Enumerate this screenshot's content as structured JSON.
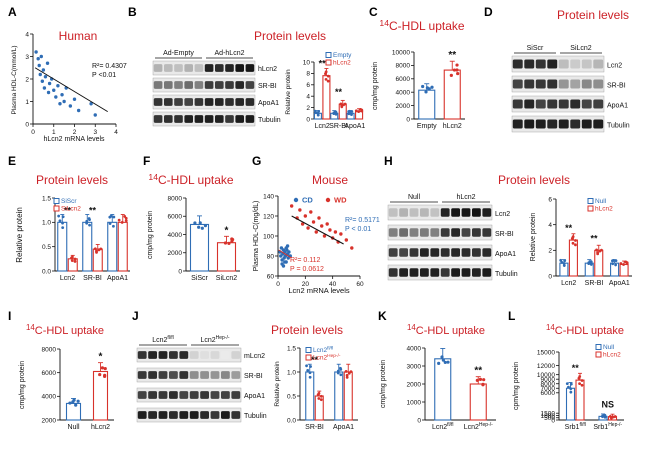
{
  "colors": {
    "blue": "#2f6db5",
    "red": "#d8322b",
    "black": "#111111",
    "panel_letter": "#000000",
    "header_red": "#cc2127"
  },
  "panels": [
    {
      "key": "A",
      "letter": "A",
      "header": "Human"
    },
    {
      "key": "B",
      "letter": "B",
      "header": "Protein levels"
    },
    {
      "key": "C",
      "letter": "C",
      "header_sup": "14",
      "header": "C-HDL uptake"
    },
    {
      "key": "D",
      "letter": "D",
      "header": "Protein levels"
    },
    {
      "key": "E",
      "letter": "E",
      "header": "Protein levels"
    },
    {
      "key": "F",
      "letter": "F",
      "header_sup": "14",
      "header": "C-HDL uptake"
    },
    {
      "key": "G",
      "letter": "G",
      "header": "Mouse"
    },
    {
      "key": "H",
      "letter": "H",
      "header": "Protein levels"
    },
    {
      "key": "I",
      "letter": "I",
      "header_sup": "14",
      "header": "C-HDL uptake"
    },
    {
      "key": "J",
      "letter": "J",
      "header": "Protein levels"
    },
    {
      "key": "K",
      "letter": "K",
      "header_sup": "14",
      "header": "C-HDL uptake"
    },
    {
      "key": "L",
      "letter": "L",
      "header_sup": "14",
      "header": "C-HDL uptake"
    }
  ],
  "blots": {
    "B": {
      "groups": [
        "Ad-Empty",
        "Ad-hLcn2"
      ],
      "rows": [
        "hLcn2",
        "SR-BI",
        "ApoA1",
        "Tubulin"
      ]
    },
    "D": {
      "groups": [
        "SiScr",
        "SiLcn2"
      ],
      "rows": [
        "Lcn2",
        "SR-BI",
        "ApoA1",
        "Tubulin"
      ]
    },
    "H": {
      "groups": [
        "Null",
        "hLcn2"
      ],
      "rows": [
        "Lcn2",
        "SR-BI",
        "ApoA1",
        "Tubulin"
      ]
    },
    "J": {
      "groups": [
        "Lcn2",
        "Lcn2"
      ],
      "group_sups": [
        "fl/fl",
        "Hep-/-"
      ],
      "rows": [
        "mLcn2",
        "SR-BI",
        "ApoA1",
        "Tubulin"
      ]
    }
  },
  "chart_data": [
    {
      "panel": "A",
      "type": "scatter",
      "xlabel": "hLcn2 mRNA levels",
      "ylabel": "Plasma HDL-C(mmol/L)",
      "xlim": [
        0,
        4
      ],
      "ylim": [
        0,
        4
      ],
      "xticks": [
        "0",
        "1",
        "2",
        "3",
        "4"
      ],
      "yticks": [
        "0",
        "1",
        "2",
        "3",
        "4"
      ],
      "annotation": [
        "R²= 0.4307",
        "P <0.01"
      ],
      "points": [
        [
          0.15,
          3.2
        ],
        [
          0.25,
          2.9
        ],
        [
          0.3,
          2.6
        ],
        [
          0.35,
          2.2
        ],
        [
          0.4,
          3.0
        ],
        [
          0.45,
          1.9
        ],
        [
          0.5,
          2.4
        ],
        [
          0.55,
          1.6
        ],
        [
          0.6,
          2.1
        ],
        [
          0.7,
          2.7
        ],
        [
          0.75,
          1.4
        ],
        [
          0.8,
          1.8
        ],
        [
          0.9,
          2.0
        ],
        [
          1.0,
          1.5
        ],
        [
          1.1,
          1.2
        ],
        [
          1.2,
          1.7
        ],
        [
          1.3,
          0.9
        ],
        [
          1.4,
          1.3
        ],
        [
          1.5,
          1.0
        ],
        [
          1.6,
          1.6
        ],
        [
          1.8,
          0.8
        ],
        [
          2.0,
          1.1
        ],
        [
          2.2,
          0.6
        ],
        [
          2.8,
          0.9
        ],
        [
          3.0,
          0.4
        ]
      ],
      "fit": [
        [
          0.1,
          2.5
        ],
        [
          3.6,
          0.55
        ]
      ]
    },
    {
      "panel": "B",
      "type": "bar",
      "ylabel": "Relative protein",
      "ylim": [
        0,
        10
      ],
      "yticks": [
        "0",
        "2",
        "4",
        "6",
        "8",
        "10"
      ],
      "categories": [
        "Lcn2",
        "SR-BI",
        "ApoA1"
      ],
      "series": [
        {
          "name": "Empty",
          "values": [
            1.0,
            1.0,
            1.0
          ]
        },
        {
          "name": "hLcn2",
          "values": [
            7.6,
            2.6,
            1.3
          ]
        }
      ],
      "sig": [
        "**",
        "**",
        ""
      ]
    },
    {
      "panel": "C",
      "type": "bar",
      "ylabel": "cmp/mg protein",
      "ylim": [
        0,
        10000
      ],
      "yticks": [
        "0",
        "2000",
        "4000",
        "6000",
        "8000",
        "10000"
      ],
      "categories": [
        "Empty",
        "hLcn2"
      ],
      "values": [
        4300,
        7300
      ],
      "sig": [
        "",
        "**"
      ]
    },
    {
      "panel": "E",
      "type": "bar",
      "ylabel": "Relative protein",
      "ylim": [
        0,
        1.5
      ],
      "yticks": [
        "0.0",
        "0.5",
        "1.0",
        "1.5"
      ],
      "categories": [
        "Lcn2",
        "SR-BI",
        "ApoA1"
      ],
      "series": [
        {
          "name": "SiScr",
          "values": [
            1.0,
            1.0,
            1.0
          ]
        },
        {
          "name": "SiLcn2",
          "values": [
            0.25,
            0.45,
            1.0
          ]
        }
      ],
      "sig": [
        "**",
        "**",
        ""
      ]
    },
    {
      "panel": "F",
      "type": "bar",
      "ylabel": "cmp/mg protein",
      "ylim": [
        0,
        8000
      ],
      "yticks": [
        "0",
        "2000",
        "4000",
        "6000",
        "8000"
      ],
      "categories": [
        "SiScr",
        "SiLcn2"
      ],
      "values": [
        5100,
        3100
      ],
      "sig": [
        "",
        "*"
      ]
    },
    {
      "panel": "G",
      "type": "scatter",
      "xlabel": "Lcn2 mRNA levels",
      "ylabel": "Plasma HDL-C(mg/dL)",
      "xlim": [
        0,
        60
      ],
      "ylim": [
        60,
        140
      ],
      "xticks": [
        "0",
        "20",
        "40",
        "60"
      ],
      "yticks": [
        "60",
        "80",
        "100",
        "120",
        "140"
      ],
      "series": [
        {
          "name": "CD",
          "annotation": [
            "R²= 0.112",
            "P = 0.0612"
          ],
          "points": [
            [
              1.5,
              84
            ],
            [
              2.0,
              80
            ],
            [
              2.5,
              88
            ],
            [
              3.0,
              76
            ],
            [
              3.5,
              82
            ],
            [
              4.0,
              86
            ],
            [
              4.5,
              78
            ],
            [
              5.0,
              84
            ],
            [
              5.5,
              80
            ],
            [
              6.0,
              74
            ],
            [
              6.5,
              86
            ],
            [
              7.0,
              82
            ],
            [
              7.5,
              78
            ],
            [
              8.0,
              84
            ],
            [
              3.0,
              72
            ],
            [
              5.0,
              74
            ],
            [
              7.0,
              90
            ],
            [
              4.0,
              70
            ],
            [
              6.0,
              88
            ],
            [
              9.0,
              80
            ]
          ],
          "fit": [
            [
              0.5,
              86
            ],
            [
              10,
              78
            ]
          ]
        },
        {
          "name": "WD",
          "annotation": [
            "R²= 0.5171",
            "P < 0.01"
          ],
          "points": [
            [
              10,
              130
            ],
            [
              14,
              118
            ],
            [
              16,
              126
            ],
            [
              18,
              112
            ],
            [
              20,
              120
            ],
            [
              22,
              108
            ],
            [
              24,
              124
            ],
            [
              26,
              114
            ],
            [
              28,
              104
            ],
            [
              30,
              118
            ],
            [
              32,
              110
            ],
            [
              34,
              100
            ],
            [
              36,
              112
            ],
            [
              38,
              106
            ],
            [
              40,
              98
            ],
            [
              42,
              104
            ],
            [
              44,
              94
            ],
            [
              46,
              102
            ],
            [
              50,
              96
            ],
            [
              54,
              88
            ]
          ],
          "fit": [
            [
              10,
              120
            ],
            [
              48,
              92
            ]
          ]
        }
      ]
    },
    {
      "panel": "H",
      "type": "bar",
      "ylabel": "Relative protein",
      "ylim": [
        0,
        6
      ],
      "yticks": [
        "0",
        "2",
        "4",
        "6"
      ],
      "categories": [
        "Lcn2",
        "SR-BI",
        "ApoA1"
      ],
      "series": [
        {
          "name": "Null",
          "values": [
            1.0,
            1.0,
            1.0
          ]
        },
        {
          "name": "hLcn2",
          "values": [
            2.8,
            2.0,
            0.9
          ]
        }
      ],
      "sig": [
        "**",
        "**",
        ""
      ]
    },
    {
      "panel": "I",
      "type": "bar",
      "ylabel": "cmp/mg protein",
      "ylim": [
        2000,
        8000
      ],
      "yticks": [
        "2000",
        "4000",
        "6000",
        "8000"
      ],
      "categories": [
        "Null",
        "hLcn2"
      ],
      "values": [
        3400,
        6100
      ],
      "sig": [
        "",
        "*"
      ]
    },
    {
      "panel": "J",
      "type": "bar",
      "ylabel": "Relative protein",
      "ylim": [
        0,
        1.5
      ],
      "yticks": [
        "0.0",
        "0.5",
        "1.0",
        "1.5"
      ],
      "categories": [
        "SR-BI",
        "ApoA1"
      ],
      "series": [
        {
          "name": "Lcn2",
          "sup": "fl/fl",
          "values": [
            1.0,
            1.0
          ]
        },
        {
          "name": "Lcn2",
          "sup": "Hep-/-",
          "values": [
            0.5,
            1.0
          ]
        }
      ],
      "sig": [
        "**",
        ""
      ]
    },
    {
      "panel": "K",
      "type": "bar",
      "ylabel": "cmp/mg protein",
      "ylim": [
        0,
        4000
      ],
      "yticks": [
        "0",
        "1000",
        "2000",
        "3000",
        "4000"
      ],
      "categories": [
        "Lcn2",
        "Lcn2"
      ],
      "category_sups": [
        "fl/fl",
        "Hep-/-"
      ],
      "values": [
        3400,
        2000
      ],
      "sig": [
        "",
        "**"
      ]
    },
    {
      "panel": "L",
      "type": "bar",
      "ylabel": "cpm/mg protein",
      "ylim": [
        0,
        15000
      ],
      "yticks": [
        "0",
        "500",
        "1000",
        "1500",
        "6000",
        "7000",
        "8000",
        "9000",
        "10000",
        "12000",
        "15000"
      ],
      "categories": [
        "Srb1",
        "Srb1"
      ],
      "category_sups": [
        "fl/fl",
        "Hep-/-"
      ],
      "series": [
        {
          "name": "Null",
          "values": [
            7000,
            800
          ]
        },
        {
          "name": "hLcn2",
          "values": [
            8800,
            750
          ]
        }
      ],
      "sig": [
        "**",
        "NS"
      ]
    }
  ]
}
